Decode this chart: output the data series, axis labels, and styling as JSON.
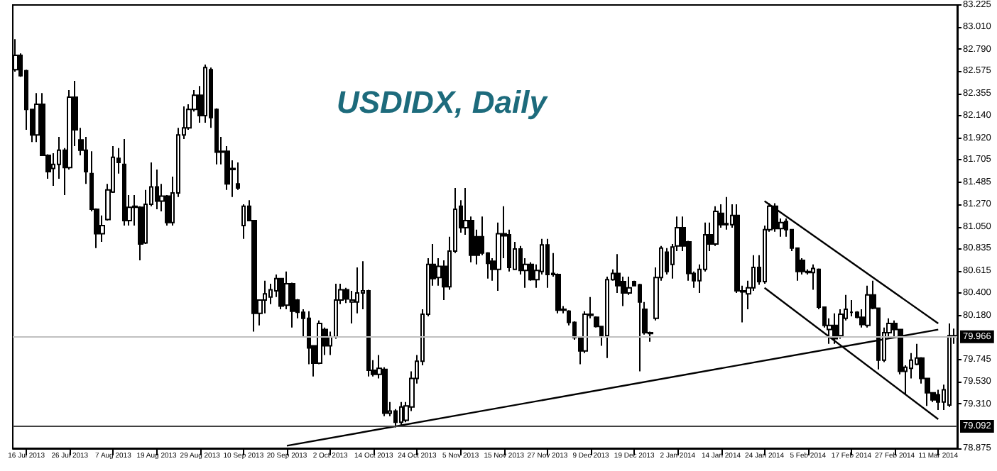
{
  "chart_data": {
    "type": "candlestick",
    "title": "USDIDX, Daily",
    "categories": [
      null,
      null,
      "16 Jul 2013",
      null,
      null,
      null,
      null,
      null,
      null,
      null,
      "26 Jul 2013",
      null,
      null,
      null,
      null,
      null,
      null,
      null,
      "7 Aug 2013",
      null,
      null,
      null,
      null,
      null,
      null,
      null,
      "19 Aug 2013",
      null,
      null,
      null,
      null,
      null,
      null,
      null,
      "29 Aug 2013",
      null,
      null,
      null,
      null,
      null,
      null,
      null,
      "10 Sep 2013",
      null,
      null,
      null,
      null,
      null,
      null,
      null,
      "20 Sep 2013",
      null,
      null,
      null,
      null,
      null,
      null,
      null,
      "2 Oct 2013",
      null,
      null,
      null,
      null,
      null,
      null,
      null,
      "14 Oct 2013",
      null,
      null,
      null,
      null,
      null,
      null,
      null,
      "24 Oct 2013",
      null,
      null,
      null,
      null,
      null,
      null,
      null,
      "5 Nov 2013",
      null,
      null,
      null,
      null,
      null,
      null,
      null,
      "15 Nov 2013",
      null,
      null,
      null,
      null,
      null,
      null,
      null,
      "27 Nov 2013",
      null,
      null,
      null,
      null,
      null,
      null,
      null,
      "9 Dec 2013",
      null,
      null,
      null,
      null,
      null,
      null,
      null,
      "19 Dec 2013",
      null,
      null,
      null,
      null,
      null,
      null,
      null,
      "2 Jan 2014",
      null,
      null,
      null,
      null,
      null,
      null,
      null,
      "14 Jan 2014",
      null,
      null,
      null,
      null,
      null,
      null,
      null,
      "24 Jan 2014",
      null,
      null,
      null,
      null,
      null,
      null,
      null,
      "5 Feb 2014",
      null,
      null,
      null,
      null,
      null,
      null,
      null,
      "17 Feb 2014",
      null,
      null,
      null,
      null,
      null,
      null,
      null,
      "27 Feb 2014",
      null,
      null,
      null,
      null,
      null,
      null,
      null,
      "11 Mar 2014",
      null,
      null,
      null
    ],
    "ohlc": [
      [
        82.59,
        82.89,
        82.57,
        82.73
      ],
      [
        82.73,
        82.75,
        82.52,
        82.53
      ],
      [
        82.58,
        82.59,
        82.0,
        82.2
      ],
      [
        82.2,
        82.2,
        81.88,
        81.95
      ],
      [
        81.95,
        82.36,
        81.88,
        82.25
      ],
      [
        82.25,
        82.36,
        81.75,
        81.75
      ],
      [
        81.75,
        81.76,
        81.52,
        81.59
      ],
      [
        81.62,
        81.77,
        81.45,
        81.66
      ],
      [
        81.66,
        81.93,
        81.52,
        81.8
      ],
      [
        81.8,
        81.82,
        81.36,
        81.63
      ],
      [
        81.63,
        82.39,
        81.61,
        82.32
      ],
      [
        82.32,
        82.48,
        81.84,
        82.0
      ],
      [
        81.9,
        82.02,
        81.75,
        81.8
      ],
      [
        81.8,
        81.93,
        81.47,
        81.59
      ],
      [
        81.57,
        81.79,
        81.2,
        81.22
      ],
      [
        81.22,
        81.23,
        80.84,
        80.98
      ],
      [
        80.98,
        81.16,
        80.9,
        81.06
      ],
      [
        81.12,
        81.47,
        81.11,
        81.41
      ],
      [
        81.39,
        81.84,
        81.38,
        81.73
      ],
      [
        81.72,
        81.82,
        81.57,
        81.68
      ],
      [
        81.66,
        81.91,
        81.06,
        81.11
      ],
      [
        81.11,
        81.36,
        81.06,
        81.24
      ],
      [
        81.24,
        81.36,
        81.06,
        81.25
      ],
      [
        81.24,
        81.25,
        80.72,
        80.88
      ],
      [
        80.89,
        81.41,
        80.88,
        81.27
      ],
      [
        81.27,
        81.68,
        81.25,
        81.44
      ],
      [
        81.44,
        81.61,
        81.22,
        81.3
      ],
      [
        81.3,
        81.47,
        81.2,
        81.35
      ],
      [
        81.35,
        81.36,
        81.06,
        81.09
      ],
      [
        81.09,
        81.54,
        81.06,
        81.38
      ],
      [
        81.38,
        82.02,
        81.34,
        81.95
      ],
      [
        81.95,
        82.23,
        81.91,
        82.02
      ],
      [
        82.02,
        82.25,
        82.0,
        82.2
      ],
      [
        82.2,
        82.39,
        82.18,
        82.34
      ],
      [
        82.34,
        82.43,
        82.07,
        82.14
      ],
      [
        82.14,
        82.64,
        82.07,
        82.61
      ],
      [
        82.59,
        82.61,
        82.02,
        82.12
      ],
      [
        82.2,
        82.21,
        81.66,
        81.78
      ],
      [
        81.78,
        81.93,
        81.66,
        81.79
      ],
      [
        81.79,
        81.84,
        81.41,
        81.47
      ],
      [
        81.61,
        81.7,
        81.34,
        81.62
      ],
      [
        81.47,
        81.68,
        81.41,
        81.43
      ],
      [
        81.06,
        81.27,
        80.93,
        81.25
      ],
      [
        81.25,
        81.31,
        81.11,
        81.11
      ],
      [
        81.11,
        81.11,
        80.02,
        80.2
      ],
      [
        80.2,
        80.33,
        80.08,
        80.33
      ],
      [
        80.33,
        80.52,
        80.2,
        80.39
      ],
      [
        80.36,
        80.49,
        80.29,
        80.43
      ],
      [
        80.42,
        80.58,
        80.36,
        80.54
      ],
      [
        80.54,
        80.54,
        80.24,
        80.27
      ],
      [
        80.28,
        80.61,
        80.24,
        80.49
      ],
      [
        80.49,
        80.5,
        80.06,
        80.22
      ],
      [
        80.33,
        80.34,
        80.15,
        80.21
      ],
      [
        80.21,
        80.24,
        79.97,
        80.15
      ],
      [
        80.15,
        80.22,
        79.7,
        79.86
      ],
      [
        79.88,
        79.88,
        79.58,
        79.71
      ],
      [
        79.71,
        80.13,
        79.7,
        80.1
      ],
      [
        80.04,
        80.06,
        79.79,
        79.88
      ],
      [
        79.88,
        80.02,
        79.79,
        79.97
      ],
      [
        79.97,
        80.49,
        79.95,
        80.33
      ],
      [
        80.33,
        80.49,
        80.29,
        80.43
      ],
      [
        80.43,
        80.45,
        80.3,
        80.34
      ],
      [
        80.31,
        80.42,
        80.1,
        80.33
      ],
      [
        80.31,
        80.65,
        80.2,
        80.4
      ],
      [
        80.4,
        80.71,
        80.24,
        80.42
      ],
      [
        80.42,
        80.43,
        79.58,
        79.64
      ],
      [
        79.64,
        79.74,
        79.58,
        79.6
      ],
      [
        79.6,
        79.79,
        79.56,
        79.66
      ],
      [
        79.65,
        79.67,
        79.19,
        79.22
      ],
      [
        79.22,
        79.33,
        79.19,
        79.24
      ],
      [
        79.24,
        79.26,
        79.08,
        79.13
      ],
      [
        79.13,
        79.33,
        79.1,
        79.28
      ],
      [
        79.15,
        79.33,
        79.13,
        79.29
      ],
      [
        79.28,
        79.63,
        79.24,
        79.56
      ],
      [
        79.56,
        79.79,
        79.51,
        79.73
      ],
      [
        79.73,
        80.24,
        79.69,
        80.19
      ],
      [
        80.19,
        80.74,
        80.17,
        80.68
      ],
      [
        80.68,
        80.88,
        80.47,
        80.54
      ],
      [
        80.55,
        80.74,
        80.47,
        80.66
      ],
      [
        80.66,
        80.72,
        80.33,
        80.46
      ],
      [
        80.46,
        80.95,
        80.43,
        80.81
      ],
      [
        80.81,
        81.43,
        80.79,
        81.22
      ],
      [
        81.25,
        81.31,
        80.99,
        81.04
      ],
      [
        81.04,
        81.43,
        80.97,
        81.11
      ],
      [
        81.11,
        81.15,
        80.7,
        80.77
      ],
      [
        80.95,
        81.02,
        80.68,
        80.77
      ],
      [
        80.95,
        81.15,
        80.77,
        80.79
      ],
      [
        80.79,
        80.8,
        80.54,
        80.69
      ],
      [
        80.71,
        80.74,
        80.52,
        80.63
      ],
      [
        80.63,
        81.09,
        80.42,
        80.98
      ],
      [
        80.98,
        81.25,
        80.74,
        80.96
      ],
      [
        80.97,
        81.02,
        80.61,
        80.65
      ],
      [
        80.63,
        80.9,
        80.63,
        80.83
      ],
      [
        80.83,
        80.86,
        80.58,
        80.62
      ],
      [
        80.62,
        80.74,
        80.45,
        80.68
      ],
      [
        80.68,
        80.7,
        80.52,
        80.53
      ],
      [
        80.53,
        80.68,
        80.45,
        80.62
      ],
      [
        80.61,
        80.93,
        80.58,
        80.87
      ],
      [
        80.87,
        80.93,
        80.45,
        80.58
      ],
      [
        80.58,
        80.79,
        80.56,
        80.59
      ],
      [
        80.58,
        80.59,
        80.2,
        80.23
      ],
      [
        80.23,
        80.27,
        80.2,
        80.24
      ],
      [
        80.22,
        80.23,
        80.08,
        80.11
      ],
      [
        80.11,
        80.12,
        79.94,
        79.96
      ],
      [
        79.96,
        79.97,
        79.7,
        79.83
      ],
      [
        79.83,
        80.22,
        79.81,
        80.19
      ],
      [
        80.19,
        80.36,
        80.15,
        80.18
      ],
      [
        80.16,
        80.17,
        80.06,
        80.07
      ],
      [
        80.07,
        80.07,
        79.88,
        79.98
      ],
      [
        79.98,
        80.56,
        79.76,
        80.53
      ],
      [
        80.53,
        80.63,
        80.52,
        80.59
      ],
      [
        80.59,
        80.78,
        80.4,
        80.47
      ],
      [
        80.51,
        80.56,
        80.27,
        80.4
      ],
      [
        80.4,
        80.56,
        80.38,
        80.45
      ],
      [
        80.51,
        80.52,
        80.47,
        80.47
      ],
      [
        80.48,
        80.49,
        79.63,
        80.31
      ],
      [
        80.24,
        80.31,
        79.99,
        80.01
      ],
      [
        80.01,
        80.02,
        79.92,
        80.0
      ],
      [
        80.15,
        80.65,
        80.13,
        80.55
      ],
      [
        80.55,
        80.86,
        80.52,
        80.84
      ],
      [
        80.8,
        80.84,
        80.58,
        80.61
      ],
      [
        80.68,
        80.88,
        80.54,
        80.85
      ],
      [
        80.86,
        81.15,
        80.81,
        81.04
      ],
      [
        81.04,
        81.15,
        80.81,
        80.86
      ],
      [
        80.9,
        80.91,
        80.52,
        80.59
      ],
      [
        80.59,
        80.61,
        80.45,
        80.52
      ],
      [
        80.52,
        80.68,
        80.4,
        80.63
      ],
      [
        80.63,
        81.09,
        80.61,
        80.97
      ],
      [
        80.97,
        81.09,
        80.81,
        80.88
      ],
      [
        80.88,
        81.25,
        80.86,
        81.2
      ],
      [
        81.18,
        81.27,
        81.04,
        81.07
      ],
      [
        81.07,
        81.34,
        81.02,
        81.08
      ],
      [
        81.07,
        81.27,
        81.04,
        81.16
      ],
      [
        81.16,
        81.27,
        80.4,
        80.42
      ],
      [
        80.42,
        80.47,
        80.11,
        80.41
      ],
      [
        80.39,
        80.52,
        80.24,
        80.45
      ],
      [
        80.45,
        80.77,
        80.42,
        80.65
      ],
      [
        80.65,
        80.77,
        80.48,
        80.51
      ],
      [
        80.51,
        81.06,
        80.49,
        81.02
      ],
      [
        81.02,
        81.28,
        81.0,
        81.25
      ],
      [
        81.25,
        81.28,
        81.0,
        81.03
      ],
      [
        81.03,
        81.13,
        80.95,
        81.09
      ],
      [
        81.1,
        81.13,
        80.95,
        81.02
      ],
      [
        81.02,
        81.02,
        80.81,
        80.84
      ],
      [
        80.84,
        80.84,
        80.52,
        80.61
      ],
      [
        80.72,
        80.74,
        80.58,
        80.61
      ],
      [
        80.6,
        80.63,
        80.58,
        80.61
      ],
      [
        80.6,
        80.68,
        80.43,
        80.64
      ],
      [
        80.63,
        80.64,
        80.24,
        80.26
      ],
      [
        80.26,
        80.26,
        80.06,
        80.08
      ],
      [
        80.04,
        80.15,
        79.9,
        80.08
      ],
      [
        80.08,
        80.2,
        79.9,
        79.95
      ],
      [
        79.98,
        80.24,
        79.95,
        80.19
      ],
      [
        80.15,
        80.38,
        80.13,
        80.24
      ],
      [
        80.21,
        80.33,
        80.17,
        80.21
      ],
      [
        80.21,
        80.22,
        80.15,
        80.16
      ],
      [
        80.16,
        80.24,
        80.06,
        80.09
      ],
      [
        80.08,
        80.47,
        80.06,
        80.38
      ],
      [
        80.38,
        80.52,
        80.24,
        80.25
      ],
      [
        80.25,
        80.25,
        79.65,
        79.74
      ],
      [
        79.74,
        80.06,
        79.72,
        80.01
      ],
      [
        80.01,
        80.15,
        79.97,
        80.1
      ],
      [
        80.1,
        80.13,
        79.97,
        80.04
      ],
      [
        80.04,
        80.04,
        79.6,
        79.63
      ],
      [
        79.63,
        79.69,
        79.4,
        79.67
      ],
      [
        79.66,
        79.81,
        79.56,
        79.74
      ],
      [
        79.7,
        79.9,
        79.69,
        79.76
      ],
      [
        79.76,
        79.77,
        79.51,
        79.56
      ],
      [
        79.56,
        79.56,
        79.29,
        79.42
      ],
      [
        79.42,
        79.42,
        79.33,
        79.35
      ],
      [
        79.4,
        79.45,
        79.25,
        79.33
      ],
      [
        79.33,
        79.5,
        79.25,
        79.45
      ],
      [
        79.3,
        80.1,
        79.28,
        79.98
      ],
      [
        79.98,
        80.05,
        79.9,
        79.97
      ]
    ],
    "series": [
      {
        "type": "line",
        "color": "#000000",
        "x": [
          "20 Sep 2013",
          "11 Mar 2014"
        ],
        "values": [
          78.9,
          80.04
        ]
      },
      {
        "type": "line",
        "color": "#000000",
        "x": [
          "24 Jan 2014",
          "11 Mar 2014"
        ],
        "values": [
          81.3,
          80.1
        ]
      },
      {
        "type": "line",
        "color": "#000000",
        "x": [
          "24 Jan 2014",
          "11 Mar 2014"
        ],
        "values": [
          80.45,
          79.16
        ]
      }
    ],
    "ref_lines": [
      {
        "axis": "y",
        "value": 79.966,
        "label": "79.966",
        "color": "#c0c0c0"
      },
      {
        "axis": "y",
        "value": 79.092,
        "label": "79.092",
        "color": "#404040"
      }
    ],
    "ylim": [
      78.875,
      83.225
    ],
    "yticks": [
      83.225,
      {
        "value": 83.01,
        "label": "83.010"
      },
      {
        "value": 82.79,
        "label": "82.790"
      },
      82.575,
      82.355,
      {
        "value": 82.14,
        "label": "82.140"
      },
      {
        "value": 81.92,
        "label": "81.920"
      },
      81.705,
      81.485,
      {
        "value": 81.27,
        "label": "81.270"
      },
      {
        "value": 81.05,
        "label": "81.050"
      },
      80.835,
      80.615,
      {
        "value": 80.4,
        "label": "80.400"
      },
      {
        "value": 80.18,
        "label": "80.180"
      },
      79.745,
      {
        "value": 79.53,
        "label": "79.530"
      },
      {
        "value": 79.31,
        "label": "79.310"
      },
      78.875
    ],
    "grid": false
  }
}
